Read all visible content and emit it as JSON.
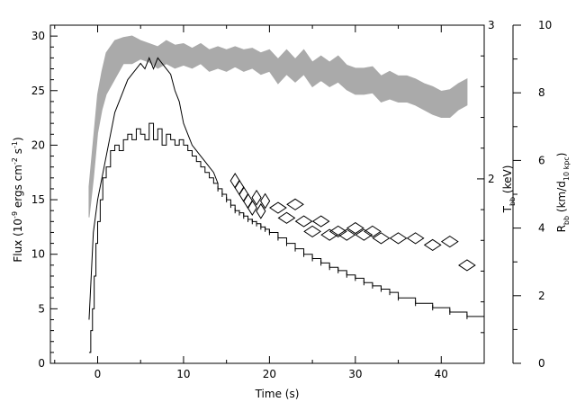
{
  "chart_data": {
    "type": "line",
    "xlabel": "Time (s)",
    "ylabel_left_main": "Flux (10",
    "ylabel_left_exp1": "-9",
    "ylabel_left_mid": " ergs cm",
    "ylabel_left_exp2": "-2",
    "ylabel_left_end": " s",
    "ylabel_left_exp3": "-1",
    "ylabel_left_close": ")",
    "ylabel_right1_main": "T",
    "ylabel_right1_sub": "bb",
    "ylabel_right1_unit": " (keV)",
    "ylabel_right2_main": "R",
    "ylabel_right2_sub": "bb",
    "ylabel_right2_unit1": " (km/d",
    "ylabel_right2_sub2": "10 kpc",
    "ylabel_right2_unit2": ")",
    "xlim": [
      -5.5,
      45
    ],
    "ylim_left": [
      0,
      31
    ],
    "ylim_right_T": [
      0.8,
      3.0
    ],
    "ylim_right_R": [
      0,
      10
    ],
    "x_ticks": [
      0,
      10,
      20,
      30,
      40
    ],
    "y_left_ticks": [
      0,
      5,
      10,
      15,
      20,
      25,
      30
    ],
    "y_right_T_ticks": [
      2,
      3
    ],
    "y_right_R_ticks": [
      0,
      2,
      4,
      6,
      8,
      10
    ],
    "series": [
      {
        "kind": "flux_histogram",
        "x": [
          -1,
          -0.8,
          -0.6,
          -0.4,
          -0.2,
          0,
          0.3,
          0.6,
          1,
          1.5,
          2,
          2.5,
          3,
          3.5,
          4,
          4.5,
          5,
          5.5,
          6,
          6.5,
          7,
          7.5,
          8,
          8.5,
          9,
          9.5,
          10,
          10.5,
          11,
          11.5,
          12,
          12.5,
          13,
          13.5,
          14,
          14.5,
          15,
          15.5,
          16,
          16.5,
          17,
          17.5,
          18,
          18.5,
          19,
          19.5,
          20,
          21,
          22,
          23,
          24,
          25,
          26,
          27,
          28,
          29,
          30,
          31,
          32,
          33,
          34,
          35,
          37,
          39,
          41,
          43,
          45
        ],
        "y": [
          1,
          3,
          5,
          8,
          11,
          13,
          15,
          17,
          18,
          19.5,
          20,
          19.5,
          20.5,
          21,
          20.5,
          21.5,
          21,
          20.5,
          22,
          20.5,
          21.5,
          20,
          21,
          20.5,
          20,
          20.5,
          20,
          19.5,
          19,
          18.5,
          18,
          17.5,
          17,
          16.5,
          16,
          15.5,
          15,
          14.5,
          14,
          13.8,
          13.5,
          13.2,
          13,
          12.8,
          12.5,
          12.3,
          12,
          11.5,
          11,
          10.5,
          10,
          9.6,
          9.2,
          8.8,
          8.5,
          8.1,
          7.8,
          7.4,
          7.1,
          6.8,
          6.5,
          6.0,
          5.5,
          5.1,
          4.7,
          4.3,
          4.0
        ]
      },
      {
        "kind": "peak_curve",
        "x": [
          -1,
          -0.5,
          0,
          0.5,
          1,
          1.5,
          2,
          2.5,
          3,
          3.5,
          4,
          4.5,
          5,
          5.5,
          6,
          6.5,
          7,
          7.5,
          8,
          8.5,
          9,
          9.5,
          10,
          10.5,
          11,
          11.5,
          12,
          12.5,
          13,
          13.5,
          14
        ],
        "y": [
          4,
          12,
          15,
          17,
          19,
          21,
          23,
          24,
          25,
          26,
          26.5,
          27,
          27.5,
          27,
          28,
          27,
          28,
          27.5,
          27,
          26.5,
          25,
          24,
          22,
          21,
          20,
          19.5,
          19,
          18.5,
          18,
          17.5,
          16.5
        ]
      },
      {
        "kind": "temperature_band",
        "x": [
          -1,
          -0.5,
          0,
          0.5,
          1,
          2,
          3,
          4,
          5,
          6,
          7,
          8,
          9,
          10,
          11,
          12,
          13,
          14,
          15,
          16,
          17,
          18,
          19,
          20,
          21,
          22,
          23,
          24,
          25,
          26,
          27,
          28,
          29,
          30,
          31,
          32,
          33,
          34,
          35,
          36,
          37,
          38,
          39,
          40,
          41,
          42,
          43
        ],
        "y_lo": [
          1.75,
          2.0,
          2.3,
          2.45,
          2.55,
          2.65,
          2.75,
          2.75,
          2.78,
          2.76,
          2.72,
          2.75,
          2.72,
          2.74,
          2.72,
          2.75,
          2.7,
          2.72,
          2.7,
          2.73,
          2.7,
          2.72,
          2.68,
          2.7,
          2.62,
          2.68,
          2.63,
          2.68,
          2.6,
          2.64,
          2.6,
          2.63,
          2.58,
          2.55,
          2.55,
          2.56,
          2.5,
          2.52,
          2.5,
          2.5,
          2.48,
          2.45,
          2.42,
          2.4,
          2.4,
          2.45,
          2.48
        ],
        "y_hi": [
          1.95,
          2.25,
          2.55,
          2.7,
          2.82,
          2.9,
          2.92,
          2.93,
          2.9,
          2.88,
          2.86,
          2.9,
          2.87,
          2.88,
          2.85,
          2.88,
          2.84,
          2.86,
          2.84,
          2.86,
          2.84,
          2.85,
          2.82,
          2.84,
          2.78,
          2.84,
          2.78,
          2.84,
          2.76,
          2.8,
          2.76,
          2.8,
          2.74,
          2.72,
          2.72,
          2.73,
          2.67,
          2.7,
          2.67,
          2.67,
          2.65,
          2.62,
          2.6,
          2.57,
          2.58,
          2.62,
          2.65
        ]
      },
      {
        "kind": "radius_diamonds",
        "x": [
          16,
          16.5,
          17,
          17.5,
          18,
          18.5,
          19,
          19.5,
          21,
          22,
          23,
          24,
          25,
          26,
          27,
          28,
          29,
          30,
          31,
          32,
          33,
          35,
          37,
          39,
          41,
          43
        ],
        "y": [
          5.4,
          5.2,
          5.0,
          4.8,
          4.6,
          4.9,
          4.5,
          4.8,
          4.6,
          4.3,
          4.7,
          4.2,
          3.9,
          4.2,
          3.8,
          3.9,
          3.8,
          4.0,
          3.8,
          3.9,
          3.7,
          3.7,
          3.7,
          3.5,
          3.6,
          2.9
        ]
      }
    ]
  }
}
